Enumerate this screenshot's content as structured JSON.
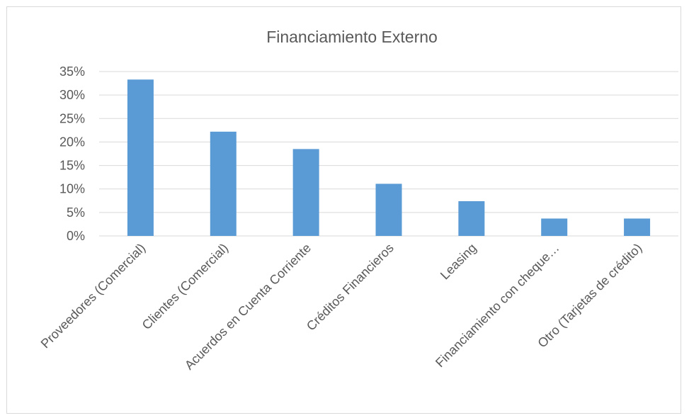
{
  "chart_data": {
    "type": "bar",
    "title": "Financiamiento Externo",
    "categories": [
      "Proveedores (Comercial)",
      "Clientes (Comercial)",
      "Acuerdos en Cuenta Corriente",
      "Créditos Financieros",
      "Leasing",
      "Financiamiento con cheque…",
      "Otro (Tarjetas de crédito)"
    ],
    "values": [
      0.333,
      0.222,
      0.185,
      0.111,
      0.074,
      0.037,
      0.037
    ],
    "yticks": [
      "0%",
      "5%",
      "10%",
      "15%",
      "20%",
      "25%",
      "30%",
      "35%"
    ],
    "ylim": [
      0,
      0.35
    ],
    "grid": true,
    "legend": "none",
    "bar_color": "#5b9bd5"
  }
}
